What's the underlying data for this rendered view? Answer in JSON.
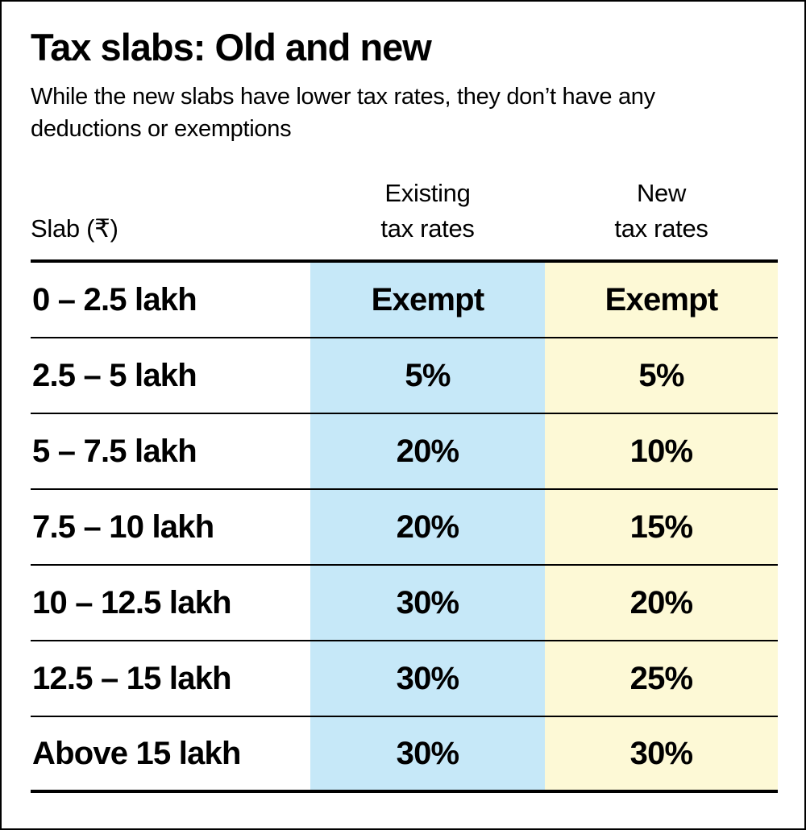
{
  "chart_data": {
    "type": "table",
    "title": "Tax slabs: Old and new",
    "subtitle": "While the new slabs have lower tax rates, they don’t have any deductions or exemptions",
    "columns": [
      {
        "label": "Slab (₹)",
        "lines": [
          "Slab (₹)"
        ]
      },
      {
        "label": "Existing tax rates",
        "lines": [
          "Existing",
          "tax rates"
        ]
      },
      {
        "label": "New tax rates",
        "lines": [
          "New",
          "tax rates"
        ]
      }
    ],
    "rows": [
      {
        "slab": "0 – 2.5 lakh",
        "existing": "Exempt",
        "new": "Exempt"
      },
      {
        "slab": "2.5 – 5 lakh",
        "existing": "5%",
        "new": "5%"
      },
      {
        "slab": "5 – 7.5 lakh",
        "existing": "20%",
        "new": "10%"
      },
      {
        "slab": "7.5 – 10 lakh",
        "existing": "20%",
        "new": "15%"
      },
      {
        "slab": "10 – 12.5 lakh",
        "existing": "30%",
        "new": "20%"
      },
      {
        "slab": "12.5 – 15 lakh",
        "existing": "30%",
        "new": "25%"
      },
      {
        "slab": "Above 15 lakh",
        "existing": "30%",
        "new": "30%"
      }
    ],
    "layout": {
      "grid": "horizontal rules only",
      "highlighted_columns": [
        "Existing tax rates",
        "New tax rates"
      ]
    }
  },
  "colors": {
    "existing_column_bg": "#c6e8f8",
    "new_column_bg": "#fdf9d6",
    "rule_color": "#000000",
    "text_color": "#000000",
    "background": "#ffffff"
  }
}
